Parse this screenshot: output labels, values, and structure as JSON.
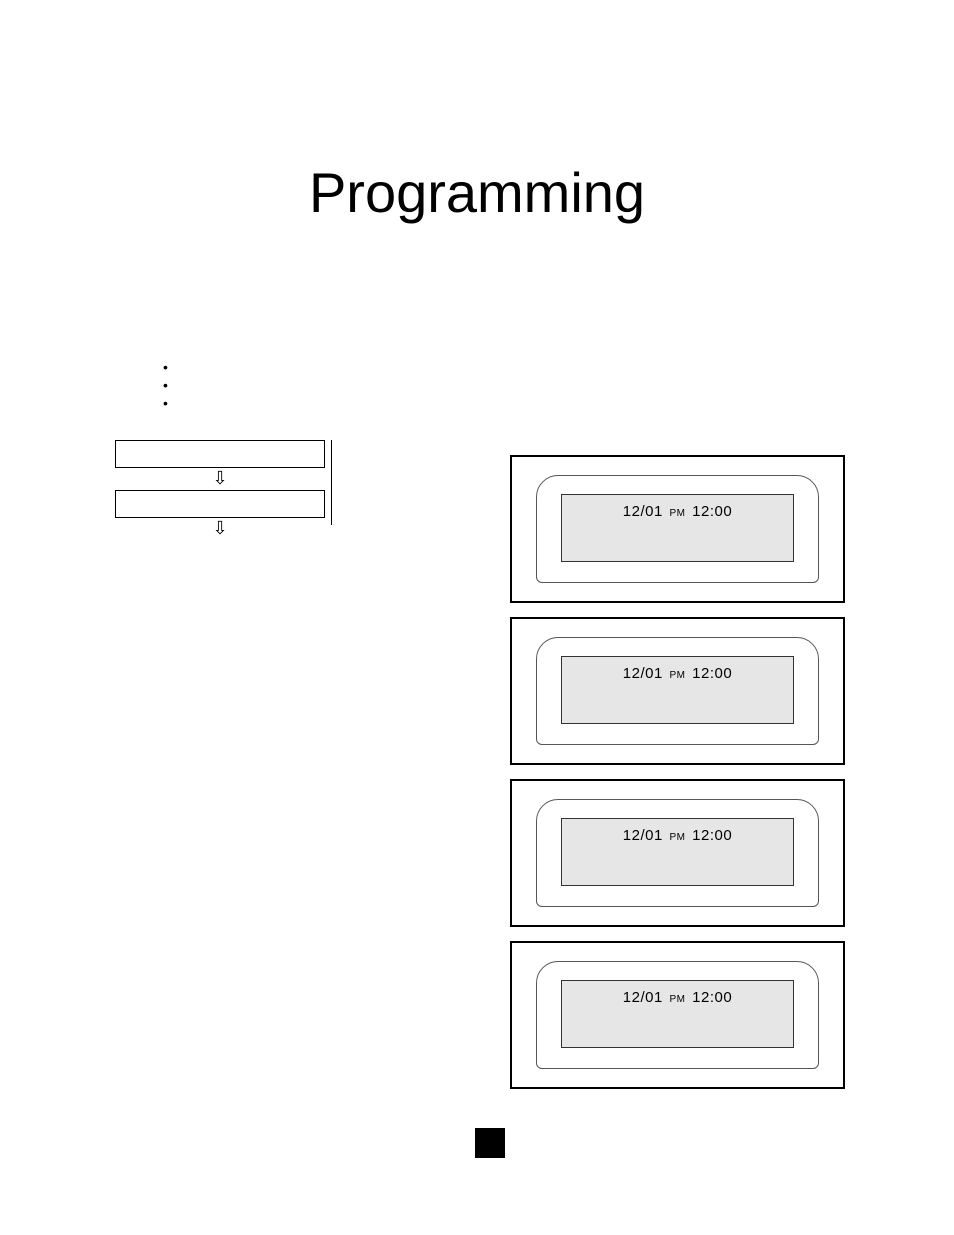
{
  "title": "Programming",
  "bullets": [
    "",
    "",
    ""
  ],
  "flow": {
    "box1": "",
    "box2": ""
  },
  "displays": [
    {
      "date": "12/01",
      "ampm": "PM",
      "time": "12:00"
    },
    {
      "date": "12/01",
      "ampm": "PM",
      "time": "12:00"
    },
    {
      "date": "12/01",
      "ampm": "PM",
      "time": "12:00"
    },
    {
      "date": "12/01",
      "ampm": "PM",
      "time": "12:00"
    }
  ],
  "colors": {
    "lcd_bg": "#e6e6e6",
    "border": "#000000",
    "page_bg": "#ffffff"
  }
}
